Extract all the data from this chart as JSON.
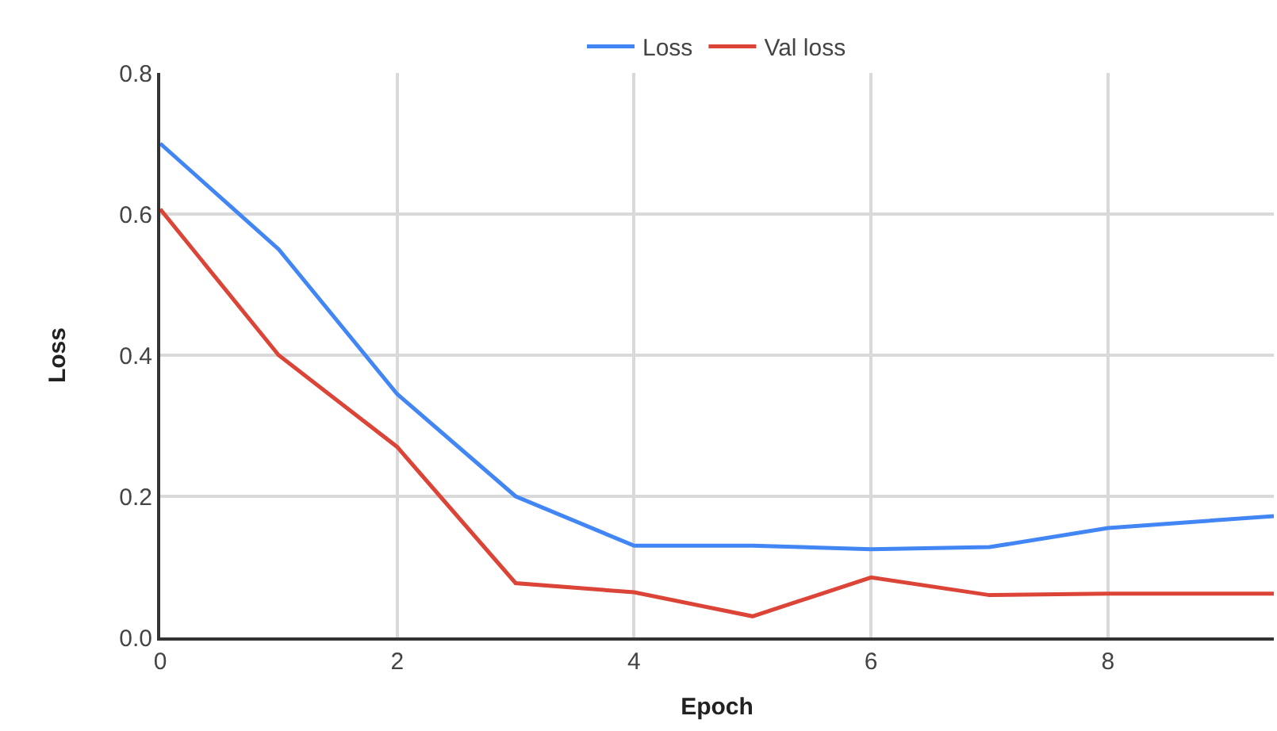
{
  "chart_data": {
    "type": "line",
    "xlabel": "Epoch",
    "ylabel": "Loss",
    "x": [
      0,
      1,
      2,
      3,
      4,
      5,
      6,
      7,
      8,
      9.4
    ],
    "series": [
      {
        "name": "Loss",
        "color": "#4285f4",
        "values": [
          0.7,
          0.55,
          0.345,
          0.2,
          0.13,
          0.13,
          0.125,
          0.128,
          0.155,
          0.172
        ]
      },
      {
        "name": "Val loss",
        "color": "#db4437",
        "values": [
          0.607,
          0.4,
          0.27,
          0.077,
          0.064,
          0.03,
          0.085,
          0.06,
          0.062,
          0.062
        ]
      }
    ],
    "xlim": [
      0,
      9.4
    ],
    "xticks": [
      0,
      2,
      4,
      6,
      8
    ],
    "ylim": [
      0,
      0.8
    ],
    "yticks": [
      {
        "value": 0,
        "label": "0.0"
      },
      0.2,
      0.4,
      0.6,
      0.8
    ],
    "grid": true,
    "legend": "top",
    "marker": "none",
    "line_style": "solid"
  }
}
